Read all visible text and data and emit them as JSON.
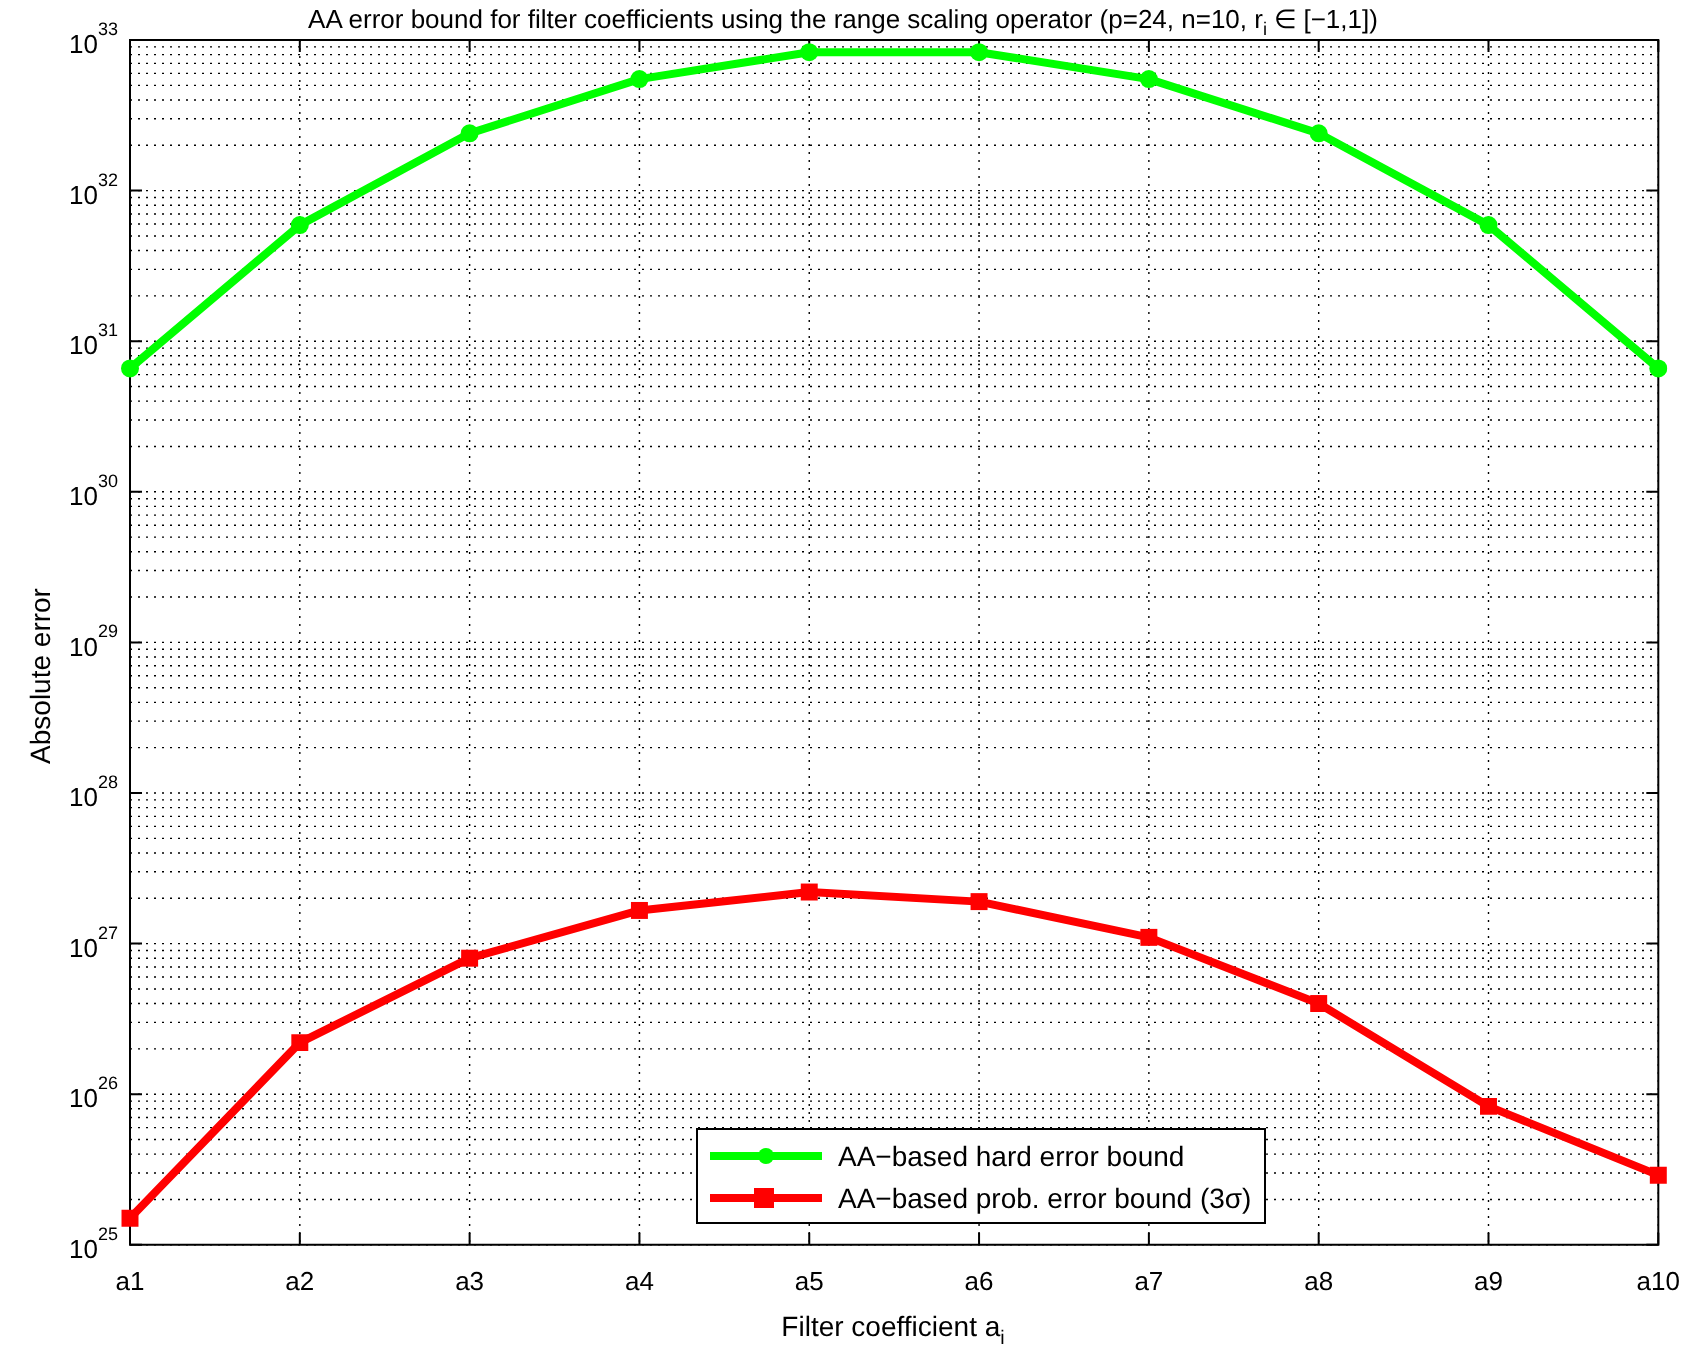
{
  "chart_data": {
    "type": "line",
    "title": "AA error bound for filter coefficients using the range scaling operator (p=24, n=10, r$_{i}$ ∈ [−1,1])",
    "xlabel": "Filter coefficient a$_{i}$",
    "ylabel": "Absolute error",
    "categories": [
      "a1",
      "a2",
      "a3",
      "a4",
      "a5",
      "a6",
      "a7",
      "a8",
      "a9",
      "a10"
    ],
    "series": [
      {
        "name": "AA−based hard error bound",
        "color": "#00ff00",
        "marker": "circle",
        "values": [
          6.6e+30,
          5.9e+31,
          2.4e+32,
          5.5e+32,
          8.3e+32,
          8.3e+32,
          5.5e+32,
          2.4e+32,
          5.9e+31,
          6.6e+30
        ]
      },
      {
        "name": "AA−based prob. error bound (3σ)",
        "color": "#ff0000",
        "marker": "square",
        "values": [
          1.5e+25,
          2.2e+26,
          8e+26,
          1.66e+27,
          2.2e+27,
          1.9e+27,
          1.1e+27,
          4e+26,
          8.3e+25,
          2.9e+25
        ]
      }
    ],
    "log": true,
    "ylim": [
      1e+25,
      1e+33
    ],
    "yticks": [
      {
        "value": 1e+25,
        "label": "10$^{25}$"
      },
      {
        "value": 1e+26,
        "label": "10$^{26}$"
      },
      {
        "value": 1e+27,
        "label": "10$^{27}$"
      },
      {
        "value": 1e+28,
        "label": "10$^{28}$"
      },
      {
        "value": 1e+29,
        "label": "10$^{29}$"
      },
      {
        "value": 1e+30,
        "label": "10$^{30}$"
      },
      {
        "value": 1e+31,
        "label": "10$^{31}$"
      },
      {
        "value": 1e+32,
        "label": "10$^{32}$"
      },
      {
        "value": 1e+33,
        "label": "10$^{33}$"
      }
    ],
    "grid": true,
    "legend": "bottom",
    "line_style": "solid"
  }
}
